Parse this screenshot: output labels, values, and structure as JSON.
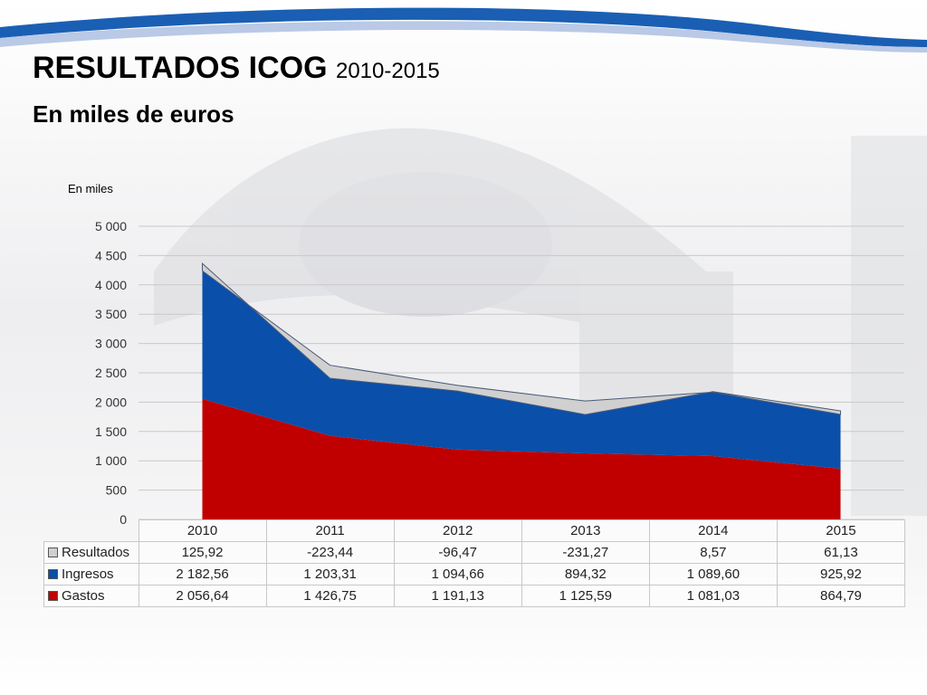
{
  "slide": {
    "title": "RESULTADOS ICOG",
    "title_years": "2010-2015",
    "subtitle": "En miles de euros"
  },
  "chart_data": {
    "type": "area",
    "stacked": true,
    "unit_label": "En miles",
    "categories": [
      "2010",
      "2011",
      "2012",
      "2013",
      "2014",
      "2015"
    ],
    "ylim": [
      0,
      5000
    ],
    "yticks": [
      0,
      500,
      1000,
      1500,
      2000,
      2500,
      3000,
      3500,
      4000,
      4500,
      5000
    ],
    "ytick_labels": [
      "0",
      "500",
      "1 000",
      "1 500",
      "2 000",
      "2 500",
      "3 000",
      "3 500",
      "4 000",
      "4 500",
      "5 000"
    ],
    "grid": true,
    "series": [
      {
        "name": "Resultados",
        "color": "#d0d0d0",
        "values": [
          125.92,
          -223.44,
          -96.47,
          -231.27,
          8.57,
          61.13
        ],
        "labels": [
          "125,92",
          "-223,44",
          "-96,47",
          "-231,27",
          "8,57",
          "61,13"
        ]
      },
      {
        "name": "Ingresos",
        "color": "#0a4faa",
        "values": [
          2182.56,
          1203.31,
          1094.66,
          894.32,
          1089.6,
          925.92
        ],
        "labels": [
          "2 182,56",
          "1 203,31",
          "1 094,66",
          "894,32",
          "1 089,60",
          "925,92"
        ]
      },
      {
        "name": "Gastos",
        "color": "#c00000",
        "values": [
          2056.64,
          1426.75,
          1191.13,
          1125.59,
          1081.03,
          864.79
        ],
        "labels": [
          "2 056,64",
          "1 426,75",
          "1 191,13",
          "1 125,59",
          "1 081,03",
          "864,79"
        ]
      }
    ]
  }
}
